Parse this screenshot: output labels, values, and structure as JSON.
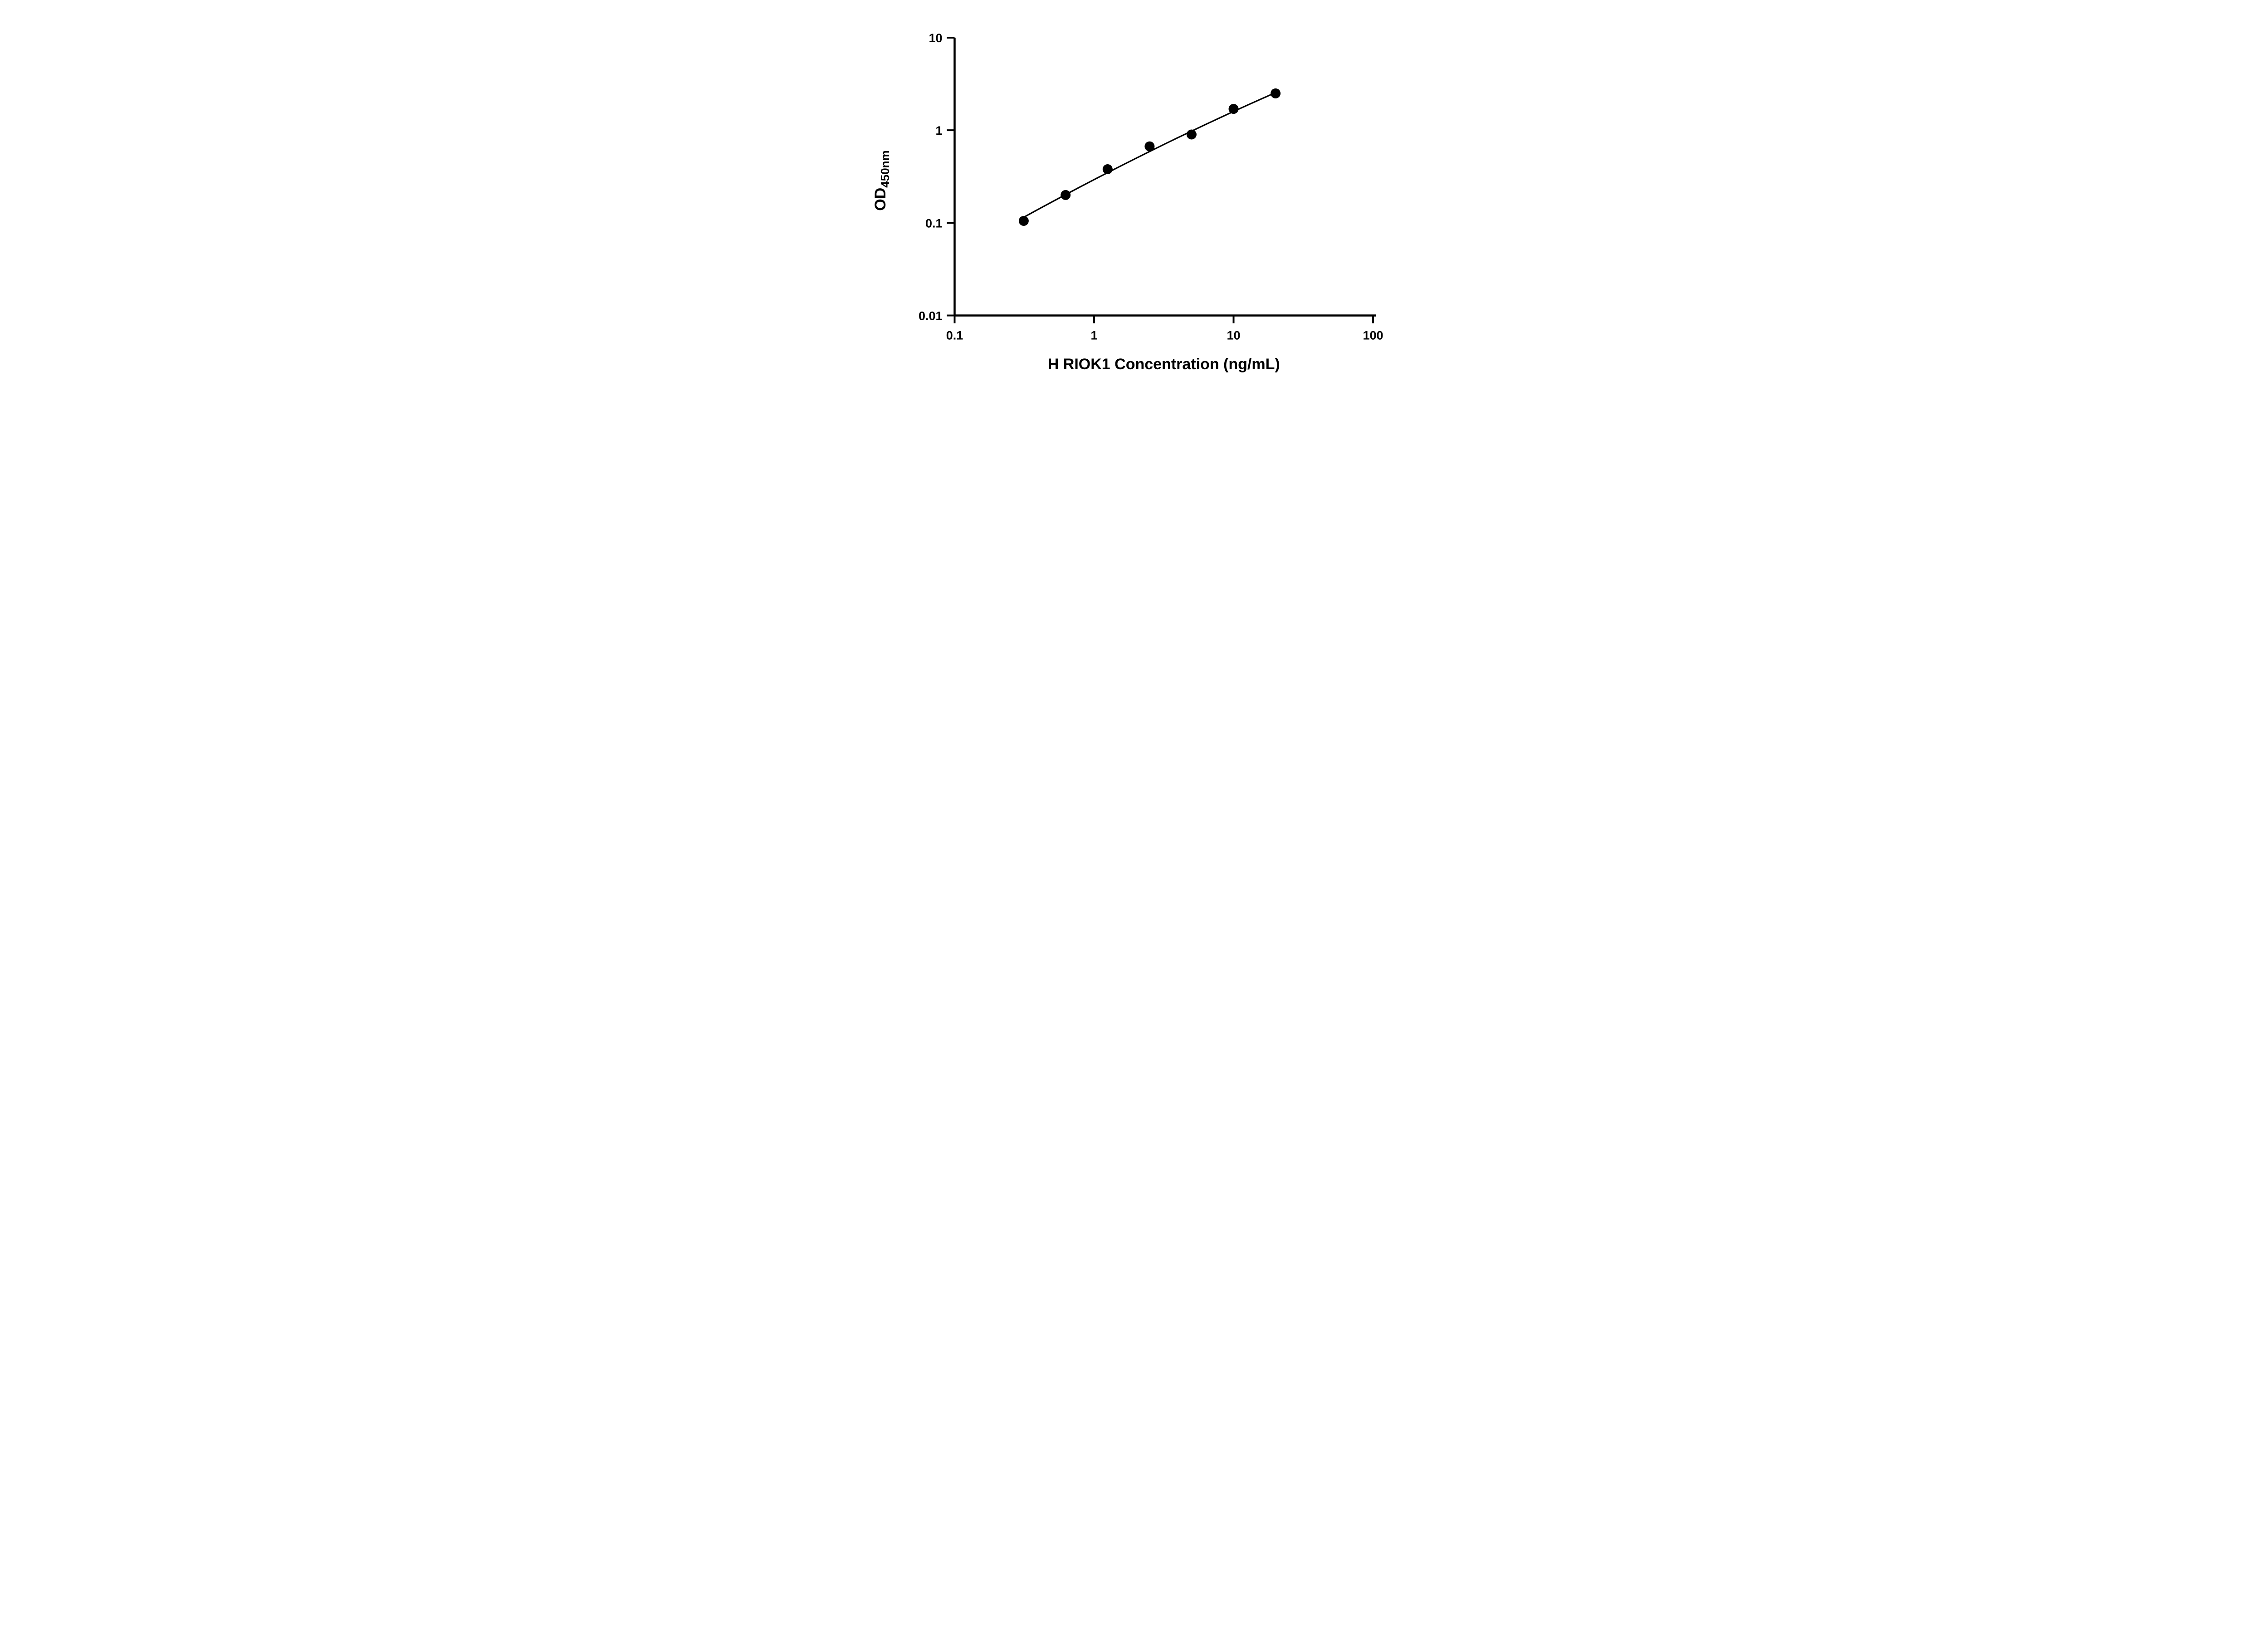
{
  "colors": {
    "ink": "#000000",
    "background": "#ffffff"
  },
  "chart_data": {
    "type": "scatter",
    "title": "",
    "xlabel": "H RIOK1 Concentration (ng/mL)",
    "ylabel_main": "OD",
    "ylabel_sub": "450nm",
    "x_scale": "log",
    "y_scale": "log",
    "xlim": [
      0.1,
      100
    ],
    "ylim": [
      0.01,
      10
    ],
    "grid": false,
    "legend": false,
    "x_ticks": [
      {
        "value": 0.1,
        "label": "0.1"
      },
      {
        "value": 1,
        "label": "1"
      },
      {
        "value": 10,
        "label": "10"
      },
      {
        "value": 100,
        "label": "100"
      }
    ],
    "y_ticks": [
      {
        "value": 0.01,
        "label": "0.01"
      },
      {
        "value": 0.1,
        "label": "0.1"
      },
      {
        "value": 1,
        "label": "1"
      },
      {
        "value": 10,
        "label": "10"
      }
    ],
    "points": [
      {
        "x": 0.313,
        "y": 0.105
      },
      {
        "x": 0.625,
        "y": 0.2
      },
      {
        "x": 1.25,
        "y": 0.38
      },
      {
        "x": 2.5,
        "y": 0.67
      },
      {
        "x": 5,
        "y": 0.9
      },
      {
        "x": 10,
        "y": 1.7
      },
      {
        "x": 20,
        "y": 2.5
      }
    ],
    "fit_curve": [
      [
        0.3133,
        0.1151
      ],
      [
        0.3981,
        0.1402
      ],
      [
        0.5012,
        0.1691
      ],
      [
        0.631,
        0.2035
      ],
      [
        0.7943,
        0.2444
      ],
      [
        1.0,
        0.2929
      ],
      [
        1.2589,
        0.3504
      ],
      [
        1.5849,
        0.4182
      ],
      [
        1.9953,
        0.498
      ],
      [
        2.5119,
        0.592
      ],
      [
        3.1623,
        0.702
      ],
      [
        3.9811,
        0.8307
      ],
      [
        5.0119,
        0.9811
      ],
      [
        6.3096,
        1.1562
      ],
      [
        7.9433,
        1.3596
      ],
      [
        10.0,
        1.5959
      ],
      [
        12.5893,
        1.8688
      ],
      [
        15.8489,
        2.1833
      ],
      [
        20.0,
        2.5496
      ]
    ],
    "marker": {
      "shape": "circle",
      "color": "#000000"
    },
    "line": {
      "color": "#000000"
    }
  }
}
